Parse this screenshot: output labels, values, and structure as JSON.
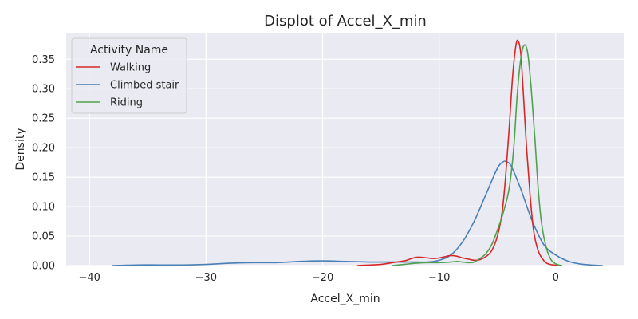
{
  "chart_data": {
    "type": "line",
    "title": "Displot of Accel_X_min",
    "xlabel": "Accel_X_min",
    "ylabel": "Density",
    "xlim": [
      -42,
      5.9
    ],
    "ylim": [
      0,
      0.395
    ],
    "xticks": [
      -40,
      -30,
      -20,
      -10,
      0
    ],
    "yticks": [
      0.0,
      0.05,
      0.1,
      0.15,
      0.2,
      0.25,
      0.3,
      0.35
    ],
    "grid": true,
    "legend": {
      "title": "Activity Name",
      "position": "top-left"
    },
    "background": "#eaeaf2",
    "series": [
      {
        "name": "Walking",
        "color": "#d62728",
        "points": [
          [
            -17,
            0.0
          ],
          [
            -15,
            0.002
          ],
          [
            -14,
            0.005
          ],
          [
            -13,
            0.008
          ],
          [
            -12.5,
            0.011
          ],
          [
            -12,
            0.014
          ],
          [
            -11.5,
            0.014
          ],
          [
            -11,
            0.013
          ],
          [
            -10.5,
            0.012
          ],
          [
            -10,
            0.013
          ],
          [
            -9.5,
            0.015
          ],
          [
            -9,
            0.017
          ],
          [
            -8.5,
            0.016
          ],
          [
            -8,
            0.013
          ],
          [
            -7.5,
            0.011
          ],
          [
            -7,
            0.009
          ],
          [
            -6.5,
            0.01
          ],
          [
            -6,
            0.015
          ],
          [
            -5.5,
            0.025
          ],
          [
            -5,
            0.05
          ],
          [
            -4.6,
            0.09
          ],
          [
            -4.3,
            0.15
          ],
          [
            -4.0,
            0.23
          ],
          [
            -3.7,
            0.32
          ],
          [
            -3.4,
            0.375
          ],
          [
            -3.2,
            0.38
          ],
          [
            -3.0,
            0.36
          ],
          [
            -2.8,
            0.3
          ],
          [
            -2.5,
            0.2
          ],
          [
            -2.2,
            0.12
          ],
          [
            -1.9,
            0.06
          ],
          [
            -1.5,
            0.025
          ],
          [
            -1.0,
            0.008
          ],
          [
            -0.5,
            0.002
          ],
          [
            0.5,
            0.0
          ]
        ]
      },
      {
        "name": "Climbed stair",
        "color": "#4a7fb5",
        "points": [
          [
            -38,
            0.0
          ],
          [
            -36,
            0.001
          ],
          [
            -34,
            0.001
          ],
          [
            -32,
            0.001
          ],
          [
            -30,
            0.002
          ],
          [
            -28,
            0.004
          ],
          [
            -26,
            0.005
          ],
          [
            -24,
            0.005
          ],
          [
            -22,
            0.007
          ],
          [
            -20,
            0.008
          ],
          [
            -18,
            0.007
          ],
          [
            -16,
            0.006
          ],
          [
            -14,
            0.006
          ],
          [
            -12,
            0.006
          ],
          [
            -11,
            0.006
          ],
          [
            -10,
            0.009
          ],
          [
            -9,
            0.018
          ],
          [
            -8,
            0.04
          ],
          [
            -7,
            0.075
          ],
          [
            -6,
            0.12
          ],
          [
            -5,
            0.165
          ],
          [
            -4.5,
            0.176
          ],
          [
            -4.2,
            0.176
          ],
          [
            -3.8,
            0.168
          ],
          [
            -3,
            0.13
          ],
          [
            -2,
            0.075
          ],
          [
            -1,
            0.035
          ],
          [
            0,
            0.018
          ],
          [
            1,
            0.008
          ],
          [
            2,
            0.003
          ],
          [
            3,
            0.001
          ],
          [
            4,
            0.0
          ]
        ]
      },
      {
        "name": "Riding",
        "color": "#50a14f",
        "points": [
          [
            -14,
            0.0
          ],
          [
            -13,
            0.002
          ],
          [
            -12,
            0.004
          ],
          [
            -11,
            0.005
          ],
          [
            -10,
            0.005
          ],
          [
            -9,
            0.006
          ],
          [
            -8.5,
            0.007
          ],
          [
            -8,
            0.006
          ],
          [
            -7.5,
            0.005
          ],
          [
            -7,
            0.006
          ],
          [
            -6.5,
            0.012
          ],
          [
            -6,
            0.02
          ],
          [
            -5.5,
            0.035
          ],
          [
            -5,
            0.06
          ],
          [
            -4.5,
            0.09
          ],
          [
            -4.0,
            0.13
          ],
          [
            -3.6,
            0.2
          ],
          [
            -3.3,
            0.29
          ],
          [
            -3.0,
            0.35
          ],
          [
            -2.7,
            0.374
          ],
          [
            -2.4,
            0.36
          ],
          [
            -2.1,
            0.3
          ],
          [
            -1.8,
            0.22
          ],
          [
            -1.5,
            0.13
          ],
          [
            -1.2,
            0.07
          ],
          [
            -0.8,
            0.03
          ],
          [
            -0.4,
            0.01
          ],
          [
            0,
            0.003
          ],
          [
            0.5,
            0.0
          ]
        ]
      }
    ]
  }
}
